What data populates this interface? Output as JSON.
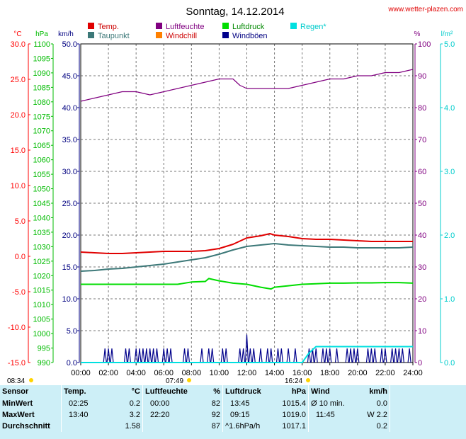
{
  "title": "Sonntag, 14.12.2014",
  "source": "www.wetter-plazen.com",
  "colors": {
    "temp": "#e00000",
    "taupunkt": "#3c7878",
    "luftfeuchte": "#800080",
    "windchill": "#ff8000",
    "luftdruck": "#00dd00",
    "windboeen": "#00008b",
    "regen": "#00e0e0",
    "axis_temp": "#ff0000",
    "axis_hpa": "#00bb00",
    "axis_kmh": "#000080",
    "axis_pct": "#800080",
    "axis_lm2": "#00cccc"
  },
  "legend": [
    {
      "label": "Temp.",
      "color": "#e00000"
    },
    {
      "label": "Luftfeuchte",
      "color": "#800080"
    },
    {
      "label": "Luftdruck",
      "color": "#00dd00"
    },
    {
      "label": "Regen*",
      "color": "#00e0e0"
    },
    {
      "label": "Taupunkt",
      "color": "#3c7878"
    },
    {
      "label": "Windchill",
      "color": "#ff8000"
    },
    {
      "label": "Windböen",
      "color": "#00008b"
    }
  ],
  "axis_units": {
    "temp": "°C",
    "hpa": "hPa",
    "kmh": "km/h",
    "pct": "%",
    "lm2": "l/m²"
  },
  "chart_data": {
    "type": "line",
    "x_label": "",
    "x_ticks": [
      "00:00",
      "02:00",
      "04:00",
      "06:00",
      "08:00",
      "10:00",
      "12:00",
      "14:00",
      "16:00",
      "18:00",
      "20:00",
      "22:00",
      "24:00"
    ],
    "x_range": [
      0,
      24
    ],
    "y_axes": {
      "temp_c": {
        "range": [
          -15,
          30
        ],
        "ticks": [
          "30.0",
          "25.0",
          "20.0",
          "15.0",
          "10.0",
          "5.0",
          "0.0",
          "-5.0",
          "-10.0",
          "-15.0"
        ]
      },
      "pressure_hpa": {
        "range": [
          990,
          1100
        ],
        "ticks": [
          "1100",
          "1095",
          "1090",
          "1085",
          "1080",
          "1075",
          "1070",
          "1065",
          "1060",
          "1055",
          "1050",
          "1045",
          "1040",
          "1035",
          "1030",
          "1025",
          "1020",
          "1015",
          "1010",
          "1005",
          "1000",
          "995",
          "990"
        ]
      },
      "wind_kmh": {
        "range": [
          0,
          50
        ],
        "ticks": [
          "50.0",
          "45.0",
          "40.0",
          "35.0",
          "30.0",
          "25.0",
          "20.0",
          "15.0",
          "10.0",
          "5.0",
          "0.0"
        ]
      },
      "humidity_pct": {
        "range": [
          0,
          100
        ],
        "ticks": [
          "100",
          "90",
          "80",
          "70",
          "60",
          "50",
          "40",
          "30",
          "20",
          "10",
          "0"
        ]
      },
      "rain_lm2": {
        "range": [
          0,
          5
        ],
        "ticks": [
          "5.0",
          "4.0",
          "3.0",
          "2.0",
          "1.0",
          "0.0"
        ]
      }
    },
    "series": [
      {
        "name": "Temp.",
        "axis": "temp_c",
        "color": "#e00000",
        "x": [
          0,
          1,
          2,
          3,
          4,
          5,
          6,
          7,
          8,
          9,
          10,
          11,
          12,
          13,
          13.67,
          14,
          15,
          16,
          17,
          18,
          19,
          20,
          21,
          22,
          23,
          24
        ],
        "y": [
          0.6,
          0.5,
          0.4,
          0.4,
          0.5,
          0.6,
          0.7,
          0.7,
          0.7,
          0.8,
          1.1,
          1.7,
          2.6,
          2.9,
          3.2,
          3.0,
          2.8,
          2.5,
          2.4,
          2.4,
          2.3,
          2.2,
          2.1,
          2.1,
          2.1,
          2.1
        ]
      },
      {
        "name": "Taupunkt",
        "axis": "temp_c",
        "color": "#3c7878",
        "x": [
          0,
          1,
          2,
          3,
          4,
          5,
          6,
          7,
          8,
          9,
          10,
          11,
          12,
          13,
          14,
          15,
          16,
          17,
          18,
          19,
          20,
          21,
          22,
          23,
          24
        ],
        "y": [
          -2.1,
          -2.0,
          -1.8,
          -1.7,
          -1.5,
          -1.3,
          -1.1,
          -0.8,
          -0.5,
          -0.2,
          0.3,
          0.9,
          1.4,
          1.6,
          1.8,
          1.6,
          1.5,
          1.4,
          1.3,
          1.3,
          1.2,
          1.2,
          1.2,
          1.2,
          1.3
        ]
      },
      {
        "name": "Luftfeuchte",
        "axis": "humidity_pct",
        "color": "#800080",
        "x": [
          0,
          1,
          2,
          3,
          4,
          5,
          6,
          7,
          8,
          9,
          10,
          11,
          11.5,
          12,
          13,
          14,
          15,
          16,
          17,
          18,
          19,
          20,
          21,
          22,
          23,
          24
        ],
        "y": [
          82,
          83,
          84,
          85,
          85,
          84,
          85,
          86,
          87,
          88,
          89,
          89,
          87,
          86,
          86,
          86,
          86,
          87,
          88,
          89,
          89,
          90,
          90,
          91,
          91,
          92
        ]
      },
      {
        "name": "Luftdruck",
        "axis": "pressure_hpa",
        "color": "#00dd00",
        "x": [
          0,
          2,
          4,
          6,
          7,
          8,
          9,
          9.25,
          10,
          11,
          12,
          13,
          13.75,
          14,
          15,
          16,
          17,
          18,
          19,
          20,
          21,
          22,
          23,
          24
        ],
        "y": [
          1017.0,
          1017.0,
          1017.0,
          1017.0,
          1017.0,
          1017.8,
          1018.0,
          1019.0,
          1018.2,
          1017.4,
          1017.0,
          1016.0,
          1015.4,
          1016.0,
          1016.5,
          1017.0,
          1017.2,
          1017.4,
          1017.4,
          1017.5,
          1017.5,
          1017.6,
          1017.6,
          1017.4
        ]
      },
      {
        "name": "Windböen",
        "axis": "wind_kmh",
        "color": "#00008b",
        "x": [
          1.75,
          2.0,
          2.25,
          3.25,
          3.5,
          4.0,
          4.25,
          4.5,
          4.75,
          5.0,
          5.25,
          5.5,
          6.0,
          6.25,
          6.5,
          7.5,
          7.75,
          8.75,
          9.25,
          9.5,
          10.25,
          10.5,
          11.5,
          11.75,
          12.0,
          12.25,
          12.5,
          13.0,
          13.5,
          13.75,
          14.25,
          14.5,
          15.0,
          15.5,
          16.5,
          16.75,
          17.0,
          17.5,
          17.75,
          18.0,
          18.5,
          19.25,
          19.5,
          19.75,
          20.0,
          20.75,
          21.0,
          21.25,
          21.75,
          22.0,
          22.5,
          22.75,
          23.0,
          23.25,
          23.75
        ],
        "y": [
          2.2,
          2.2,
          2.2,
          2.2,
          2.2,
          2.2,
          2.2,
          2.2,
          2.2,
          2.2,
          2.2,
          2.2,
          2.2,
          2.2,
          2.2,
          2.2,
          2.2,
          2.2,
          2.2,
          2.2,
          2.2,
          2.2,
          2.2,
          2.2,
          4.4,
          2.2,
          2.2,
          2.2,
          2.2,
          2.2,
          2.2,
          2.2,
          2.2,
          2.2,
          2.2,
          2.2,
          2.2,
          2.2,
          2.2,
          2.2,
          2.2,
          2.2,
          2.2,
          2.2,
          2.2,
          2.2,
          2.2,
          2.2,
          2.2,
          2.2,
          2.2,
          2.2,
          2.2,
          2.2,
          2.2
        ]
      },
      {
        "name": "Regen*",
        "axis": "rain_lm2",
        "color": "#00e0e0",
        "x": [
          0,
          16.0,
          16.5,
          17.0,
          24
        ],
        "y": [
          0,
          0,
          0.15,
          0.25,
          0.25
        ]
      }
    ]
  },
  "sun": {
    "sunrise": "08:34",
    "sunset": "16:24",
    "sun_low_left": "07:49"
  },
  "stats": {
    "headers": {
      "sensor": "Sensor",
      "temp": "Temp.",
      "temp_unit": "°C",
      "hum": "Luftfeuchte",
      "hum_unit": "%",
      "press": "Luftdruck",
      "press_unit": "hPa",
      "wind": "Wind",
      "wind_unit": "km/h"
    },
    "rows": [
      {
        "label": "MinWert",
        "temp_time": "02:25",
        "temp_val": "0.2",
        "hum_time": "00:00",
        "hum_val": "82",
        "press_time": "13:45",
        "press_val": "1015.4",
        "wind_desc": "Ø 10 min.",
        "wind_val": "0.0"
      },
      {
        "label": "MaxWert",
        "temp_time": "13:40",
        "temp_val": "3.2",
        "hum_time": "22:20",
        "hum_val": "92",
        "press_time": "09:15",
        "press_val": "1019.0",
        "wind_desc": "W 2.2",
        "wind_val": ""
      },
      {
        "label": "Durchschnitt",
        "temp_time": "",
        "temp_val": "1.58",
        "hum_time": "",
        "hum_val": "87",
        "press_time": "^1.6hPa/h",
        "press_val": "1017.1",
        "wind_desc": "",
        "wind_val": "0.2"
      }
    ],
    "wind_max_time": "11:45"
  }
}
